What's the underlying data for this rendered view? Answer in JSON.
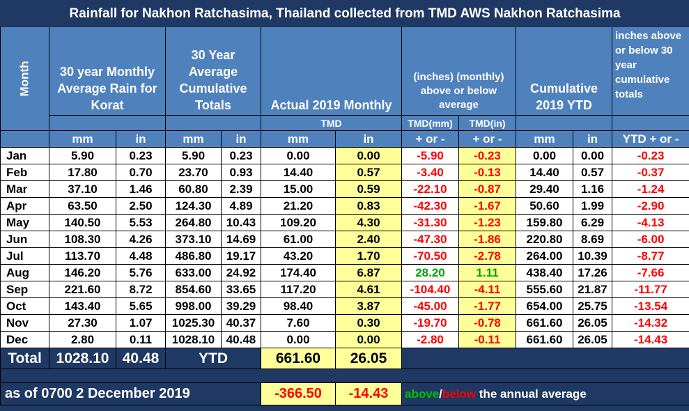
{
  "title": "Rainfall for Nakhon Ratchasima, Thailand collected from TMD AWS Nakhon Ratchasima",
  "headers": {
    "month": "Month",
    "avg_monthly": "30 year Monthly Average Rain for Korat",
    "avg_cumulative": "30 Year Average Cumulative Totals",
    "actual_monthly": "Actual 2019 Monthly",
    "diff_monthly": "(inches) (monthly) above or below average",
    "cumulative_ytd": "Cumulative 2019 YTD",
    "diff_cumulative": "inches above or below 30 year cumulative totals",
    "tmd": "TMD",
    "tmd_mm": "TMD(mm)",
    "tmd_in": "TMD(in)",
    "mm": "mm",
    "in": "in",
    "plus_minus": "+ or -",
    "ytd_plus_minus": "YTD + or -"
  },
  "rows": [
    {
      "month": "Jan",
      "avg_mm": "5.90",
      "avg_in": "0.23",
      "cum_mm": "5.90",
      "cum_in": "0.23",
      "act_mm": "0.00",
      "act_in": "0.00",
      "diff_mm": "-5.90",
      "diff_in": "-0.23",
      "ytd_mm": "0.00",
      "ytd_in": "0.00",
      "ytd_diff": "-0.23"
    },
    {
      "month": "Feb",
      "avg_mm": "17.80",
      "avg_in": "0.70",
      "cum_mm": "23.70",
      "cum_in": "0.93",
      "act_mm": "14.40",
      "act_in": "0.57",
      "diff_mm": "-3.40",
      "diff_in": "-0.13",
      "ytd_mm": "14.40",
      "ytd_in": "0.57",
      "ytd_diff": "-0.37"
    },
    {
      "month": "Mar",
      "avg_mm": "37.10",
      "avg_in": "1.46",
      "cum_mm": "60.80",
      "cum_in": "2.39",
      "act_mm": "15.00",
      "act_in": "0.59",
      "diff_mm": "-22.10",
      "diff_in": "-0.87",
      "ytd_mm": "29.40",
      "ytd_in": "1.16",
      "ytd_diff": "-1.24"
    },
    {
      "month": "Apr",
      "avg_mm": "63.50",
      "avg_in": "2.50",
      "cum_mm": "124.30",
      "cum_in": "4.89",
      "act_mm": "21.20",
      "act_in": "0.83",
      "diff_mm": "-42.30",
      "diff_in": "-1.67",
      "ytd_mm": "50.60",
      "ytd_in": "1.99",
      "ytd_diff": "-2.90"
    },
    {
      "month": "May",
      "avg_mm": "140.50",
      "avg_in": "5.53",
      "cum_mm": "264.80",
      "cum_in": "10.43",
      "act_mm": "109.20",
      "act_in": "4.30",
      "diff_mm": "-31.30",
      "diff_in": "-1.23",
      "ytd_mm": "159.80",
      "ytd_in": "6.29",
      "ytd_diff": "-4.13"
    },
    {
      "month": "Jun",
      "avg_mm": "108.30",
      "avg_in": "4.26",
      "cum_mm": "373.10",
      "cum_in": "14.69",
      "act_mm": "61.00",
      "act_in": "2.40",
      "diff_mm": "-47.30",
      "diff_in": "-1.86",
      "ytd_mm": "220.80",
      "ytd_in": "8.69",
      "ytd_diff": "-6.00"
    },
    {
      "month": "Jul",
      "avg_mm": "113.70",
      "avg_in": "4.48",
      "cum_mm": "486.80",
      "cum_in": "19.17",
      "act_mm": "43.20",
      "act_in": "1.70",
      "diff_mm": "-70.50",
      "diff_in": "-2.78",
      "ytd_mm": "264.00",
      "ytd_in": "10.39",
      "ytd_diff": "-8.77"
    },
    {
      "month": "Aug",
      "avg_mm": "146.20",
      "avg_in": "5.76",
      "cum_mm": "633.00",
      "cum_in": "24.92",
      "act_mm": "174.40",
      "act_in": "6.87",
      "diff_mm": "28.20",
      "diff_in": "1.11",
      "ytd_mm": "438.40",
      "ytd_in": "17.26",
      "ytd_diff": "-7.66"
    },
    {
      "month": "Sep",
      "avg_mm": "221.60",
      "avg_in": "8.72",
      "cum_mm": "854.60",
      "cum_in": "33.65",
      "act_mm": "117.20",
      "act_in": "4.61",
      "diff_mm": "-104.40",
      "diff_in": "-4.11",
      "ytd_mm": "555.60",
      "ytd_in": "21.87",
      "ytd_diff": "-11.77"
    },
    {
      "month": "Oct",
      "avg_mm": "143.40",
      "avg_in": "5.65",
      "cum_mm": "998.00",
      "cum_in": "39.29",
      "act_mm": "98.40",
      "act_in": "3.87",
      "diff_mm": "-45.00",
      "diff_in": "-1.77",
      "ytd_mm": "654.00",
      "ytd_in": "25.75",
      "ytd_diff": "-13.54"
    },
    {
      "month": "Nov",
      "avg_mm": "27.30",
      "avg_in": "1.07",
      "cum_mm": "1025.30",
      "cum_in": "40.37",
      "act_mm": "7.60",
      "act_in": "0.30",
      "diff_mm": "-19.70",
      "diff_in": "-0.78",
      "ytd_mm": "661.60",
      "ytd_in": "26.05",
      "ytd_diff": "-14.32"
    },
    {
      "month": "Dec",
      "avg_mm": "2.80",
      "avg_in": "0.11",
      "cum_mm": "1028.10",
      "cum_in": "40.48",
      "act_mm": "0.00",
      "act_in": "0.00",
      "diff_mm": "-2.80",
      "diff_in": "-0.11",
      "ytd_mm": "661.60",
      "ytd_in": "26.05",
      "ytd_diff": "-14.43"
    }
  ],
  "total": {
    "label": "Total",
    "avg_mm": "1028.10",
    "avg_in": "40.48",
    "ytd_label": "YTD",
    "act_mm": "661.60",
    "act_in": "26.05"
  },
  "footer": {
    "as_of": "as of 0700 2 December 2019",
    "diff_mm": "-366.50",
    "diff_in": "-14.43",
    "note_above": "above",
    "note_slash": "/",
    "note_below": "below",
    "note_rest": " the annual average"
  },
  "colors": {
    "header_bg": "#4f81bd",
    "dark_bg": "#1f3864",
    "highlight": "#ffff99",
    "negative": "#ff0000",
    "positive": "#00a000"
  }
}
